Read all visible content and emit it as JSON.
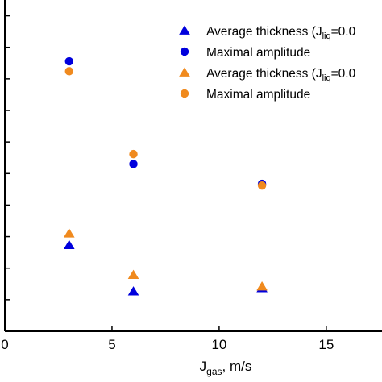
{
  "chart_data": {
    "type": "scatter",
    "xlabel": "J",
    "xlabel_sub": "gas",
    "xlabel_unit": ", m/s",
    "xticks": [
      0,
      5,
      10,
      15
    ],
    "xlim": [
      0,
      17.6
    ],
    "ylim": [
      0,
      1
    ],
    "legend_position": "top-right",
    "series": [
      {
        "name": "Average thickness (J",
        "name_sub": "liq",
        "name_tail": "=0.0",
        "marker": "triangle",
        "color": "#0000dd",
        "x": [
          3,
          6,
          12
        ],
        "y": [
          0.26,
          0.12,
          0.13
        ]
      },
      {
        "name": "Maximal amplitude",
        "marker": "circle",
        "color": "#0000dd",
        "x": [
          3,
          6,
          12
        ],
        "y": [
          0.815,
          0.505,
          0.445
        ]
      },
      {
        "name": "Average thickness (J",
        "name_sub": "liq",
        "name_tail": "=0.0",
        "marker": "triangle",
        "color": "#f08a1e",
        "x": [
          3,
          6,
          12
        ],
        "y": [
          0.295,
          0.17,
          0.135
        ]
      },
      {
        "name": "Maximal amplitude",
        "marker": "circle",
        "color": "#f08a1e",
        "x": [
          3,
          6,
          12
        ],
        "y": [
          0.785,
          0.535,
          0.44
        ]
      }
    ]
  }
}
